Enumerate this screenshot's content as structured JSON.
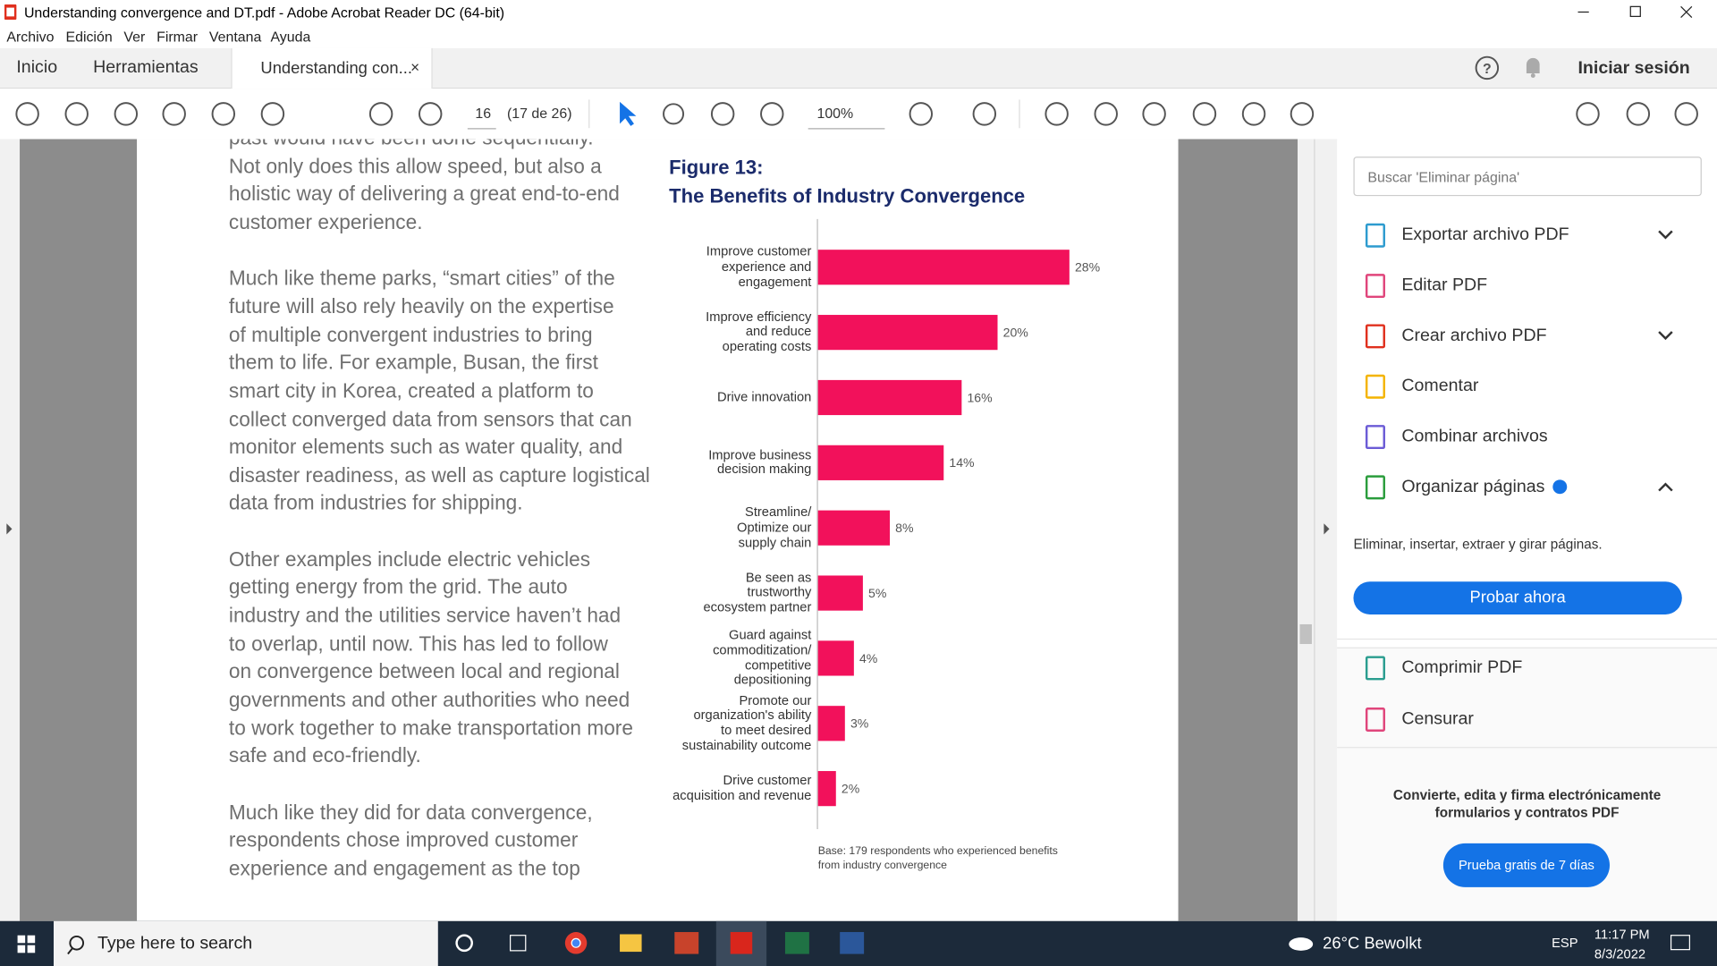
{
  "window": {
    "title": "Understanding convergence and DT.pdf - Adobe Acrobat Reader DC (64-bit)"
  },
  "menu": [
    "Archivo",
    "Edición",
    "Ver",
    "Firmar",
    "Ventana",
    "Ayuda"
  ],
  "tabs": {
    "home": "Inicio",
    "tools": "Herramientas",
    "document": "Understanding con...",
    "sign_in": "Iniciar sesión"
  },
  "toolbar": {
    "page": "16",
    "page_count": "(17 de 26)",
    "zoom": "100%"
  },
  "document": {
    "paragraphs": [
      [
        "past would have been done sequentially.",
        "Not only does this allow speed, but also a",
        "holistic way of delivering a great end-to-end",
        "customer experience."
      ],
      [
        "Much like theme parks, “smart cities” of the",
        "future will also rely heavily on the expertise",
        "of multiple convergent industries to bring",
        "them to life. For example, Busan, the first",
        "smart city in Korea, created a platform to",
        "collect converged data from sensors that can",
        "monitor elements such as water quality, and",
        "disaster readiness, as well as capture logistical",
        "data from industries for shipping."
      ],
      [
        "Other examples include electric vehicles",
        "getting energy from the grid. The auto",
        "industry and the utilities service haven’t had",
        "to overlap, until now. This has led to follow",
        "on convergence between local and regional",
        "governments and other authorities who need",
        "to work together to make transportation more",
        "safe and eco-friendly."
      ],
      [
        "Much like they did for data convergence,",
        "respondents chose improved customer",
        "experience and engagement as the top"
      ]
    ]
  },
  "chart_data": {
    "type": "bar",
    "orientation": "horizontal",
    "title": "Figure 13:",
    "subtitle": "The Benefits of Industry Convergence",
    "categories": [
      "Improve customer\nexperience and\nengagement",
      "Improve efficiency\nand reduce\noperating costs",
      "Drive innovation",
      "Improve business\ndecision making",
      "Streamline/\nOptimize our\nsupply chain",
      "Be seen as\ntrustworthy\necosystem partner",
      "Guard against\ncommoditization/\ncompetitive\ndepositioning",
      "Promote our\norganization's ability\nto meet desired\nsustainability outcome",
      "Drive customer\nacquisition and revenue"
    ],
    "values": [
      28,
      20,
      16,
      14,
      8,
      5,
      4,
      3,
      2
    ],
    "value_labels": [
      "28%",
      "20%",
      "16%",
      "14%",
      "8%",
      "5%",
      "4%",
      "3%",
      "2%"
    ],
    "color": "#f2115b",
    "note": "Base: 179 respondents who experienced benefits\nfrom industry convergence"
  },
  "panel": {
    "search": "Buscar 'Eliminar página'",
    "tools": [
      "Exportar archivo PDF",
      "Editar PDF",
      "Crear archivo PDF",
      "Comentar",
      "Combinar archivos",
      "Organizar páginas"
    ],
    "description": "Eliminar, insertar, extraer y girar páginas.",
    "button": "Probar ahora",
    "more_tools": [
      "Comprimir PDF",
      "Censurar"
    ],
    "promo": "Convierte, edita y firma electrónicamente\nformularios y contratos PDF",
    "promo_button": "Prueba gratis de 7 días"
  },
  "taskbar": {
    "search": "Type here to search",
    "weather": "26°C Bewolkt",
    "language": "ESP",
    "time": "11:17 PM",
    "date": "8/3/2022"
  }
}
